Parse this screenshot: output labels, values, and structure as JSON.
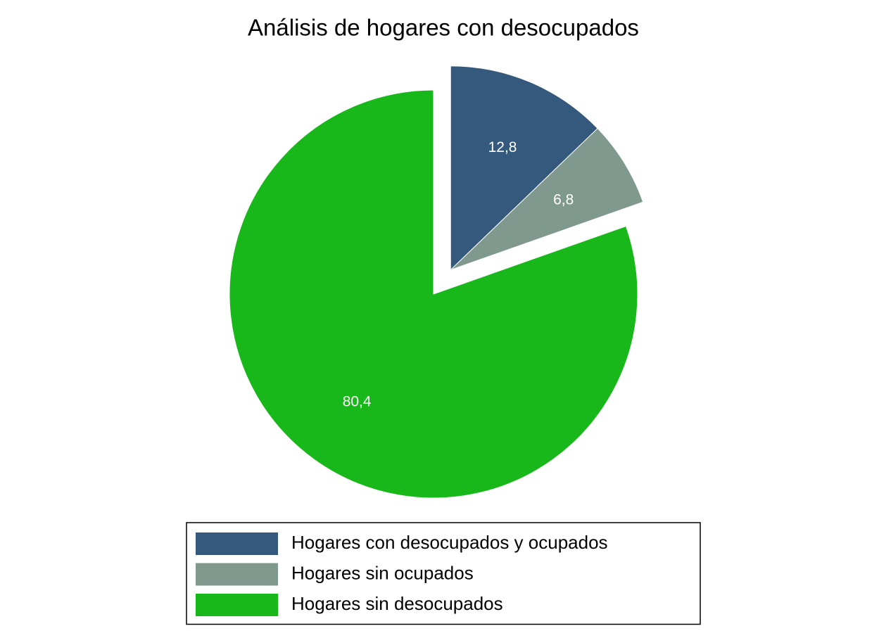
{
  "chart_data": {
    "type": "pie",
    "title": "Análisis de hogares con desocupados",
    "categories": [
      "Hogares con desocupados y ocupados",
      "Hogares sin ocupados",
      "Hogares sin desocupados"
    ],
    "values": [
      12.8,
      6.8,
      80.4
    ],
    "value_labels": [
      "12,8",
      "6,8",
      "80,4"
    ],
    "colors": [
      "#34597d",
      "#7f998f",
      "#18b81b"
    ],
    "explode": [
      true,
      true,
      false
    ],
    "legend": "bottom"
  }
}
